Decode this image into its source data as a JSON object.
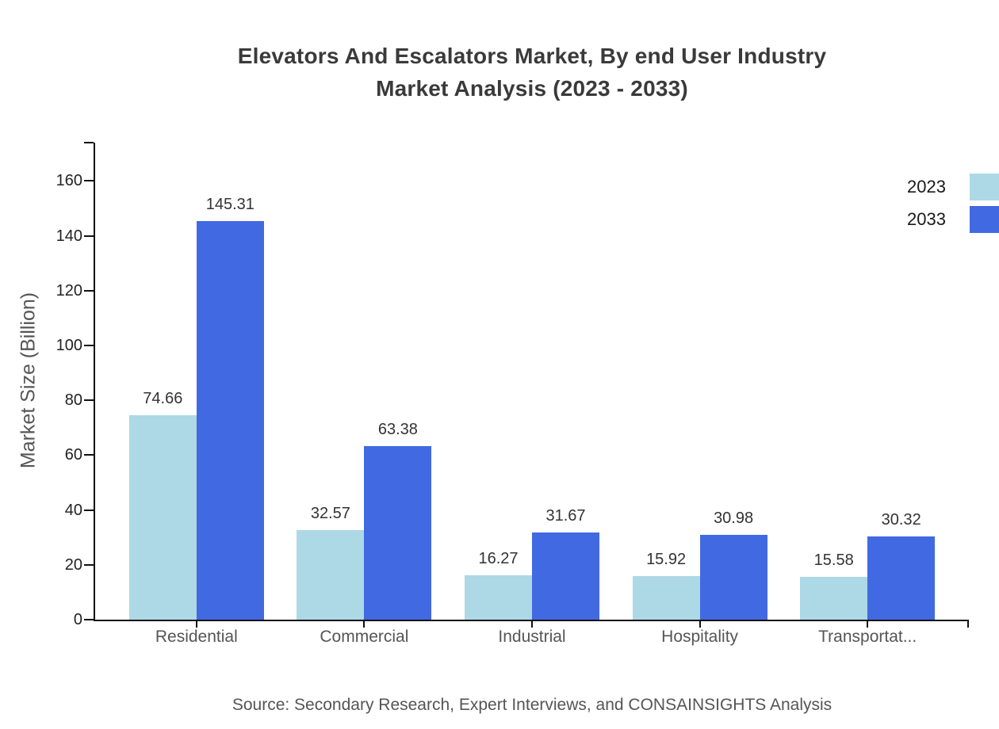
{
  "page": {
    "title": "Elevators And Escalators Market, By end User Industry\nMarket Analysis (2023 - 2033)",
    "source_note": "Source: Secondary Research, Expert Interviews, and CONSAINSIGHTS Analysis"
  },
  "chart_data": {
    "type": "bar",
    "title": "Elevators And Escalators Market, By end User Industry Market Analysis (2023 - 2033)",
    "categories": [
      "Residential",
      "Commercial",
      "Industrial",
      "Hospitality",
      "Transportat..."
    ],
    "series": [
      {
        "name": "2023",
        "color": "#ADD8E6",
        "values": [
          74.66,
          32.57,
          16.27,
          15.92,
          15.58
        ]
      },
      {
        "name": "2033",
        "color": "#4169E1",
        "values": [
          145.31,
          63.38,
          31.67,
          30.98,
          30.32
        ]
      }
    ],
    "xlabel": "",
    "ylabel": "Market Size (Billion)",
    "ylim": [
      0,
      174
    ],
    "yticks": [
      0,
      20,
      40,
      60,
      80,
      100,
      120,
      140,
      160
    ],
    "grid": false,
    "legend_position": "top-right",
    "value_labels": true,
    "value_label_decimals": 2,
    "colors": {
      "axis": "#111111",
      "tick_label": "#222222",
      "category_label": "#555555",
      "axis_title": "#555555",
      "value_label": "#333333",
      "legend_text": "#1a1a1a",
      "background": "#ffffff"
    }
  }
}
